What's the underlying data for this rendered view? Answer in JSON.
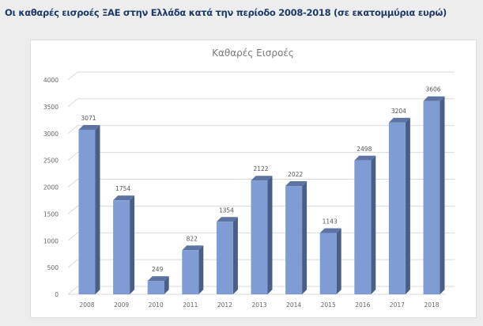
{
  "page_title": "Οι καθαρές εισροές ΞΑΕ στην Ελλάδα κατά την περίοδο 2008-2018 (σε εκατομμύρια ευρώ)",
  "chart_data": {
    "type": "bar",
    "title": "Καθαρές Εισροές",
    "categories": [
      "2008",
      "2009",
      "2010",
      "2011",
      "2012",
      "2013",
      "2014",
      "2015",
      "2016",
      "2017",
      "2018"
    ],
    "values": [
      3071,
      1754,
      249,
      822,
      1354,
      2122,
      2022,
      1143,
      2498,
      3204,
      3606
    ],
    "ylim": [
      0,
      4000
    ],
    "yticks": [
      0,
      500,
      1000,
      1500,
      2000,
      2500,
      3000,
      3500,
      4000
    ],
    "grid": true,
    "three_d": true,
    "legend": "none",
    "bar_color": "#7f9dd4",
    "bar_side_color": "#4a5f86"
  }
}
